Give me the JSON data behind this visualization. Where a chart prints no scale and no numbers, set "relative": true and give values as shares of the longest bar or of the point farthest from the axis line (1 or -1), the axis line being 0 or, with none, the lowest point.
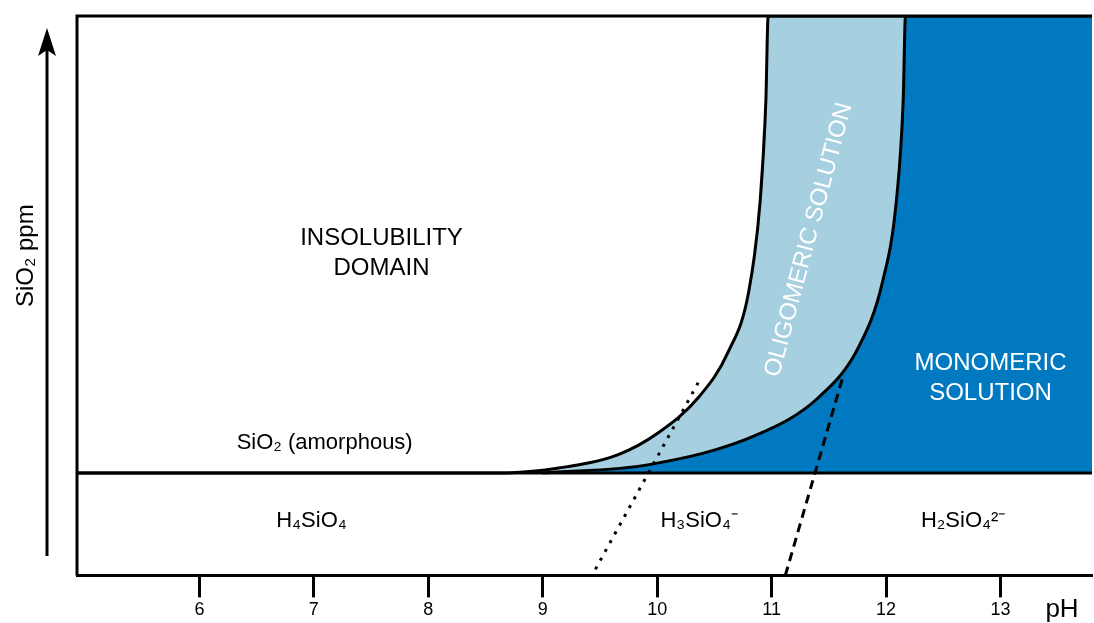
{
  "chart_data": {
    "type": "area",
    "relative": true,
    "xlabel": "pH",
    "ylabel": "SiO₂ ppm",
    "xlim": [
      4.93,
      13.8
    ],
    "xticks": [
      6,
      7,
      8,
      9,
      10,
      11,
      12,
      13
    ],
    "series": [
      {
        "color": "#a6cfe0",
        "x": [
          4.93,
          8.62,
          9.14,
          9.66,
          10.01,
          10.36,
          10.62,
          10.8,
          10.9,
          10.95,
          10.97,
          13.8
        ],
        "values": [
          0.183,
          0.183,
          0.192,
          0.216,
          0.255,
          0.318,
          0.399,
          0.507,
          0.669,
          0.849,
          1,
          1
        ]
      },
      {
        "color": "#0079c1",
        "x": [
          9.0,
          9.93,
          10.88,
          11.41,
          11.76,
          11.97,
          12.09,
          12.15,
          12.17,
          13.8
        ],
        "values": [
          0.183,
          0.198,
          0.252,
          0.318,
          0.408,
          0.525,
          0.669,
          0.849,
          1,
          1
        ]
      },
      {
        "type": "line",
        "line_style": "dotted",
        "color": "#000000",
        "x": [
          9.46,
          10.36
        ],
        "values": [
          0.011,
          0.345
        ]
      },
      {
        "type": "line",
        "line_style": "dashed",
        "color": "#000000",
        "x": [
          11.12,
          11.63
        ],
        "values": [
          0,
          0.36
        ]
      }
    ],
    "ref_lines": [
      {
        "axis": "y",
        "value": 0.183
      }
    ],
    "annotations": [
      "INSOLUBILITY\nDOMAIN",
      "OLIGOMERIC SOLUTION",
      "MONOMERIC\nSOLUTION",
      "SiO₂ (amorphous)",
      "H₄SiO₄",
      "H₃SiO₄⁻",
      "H₂SiO₄²⁻"
    ],
    "legend": false,
    "grid": false
  }
}
